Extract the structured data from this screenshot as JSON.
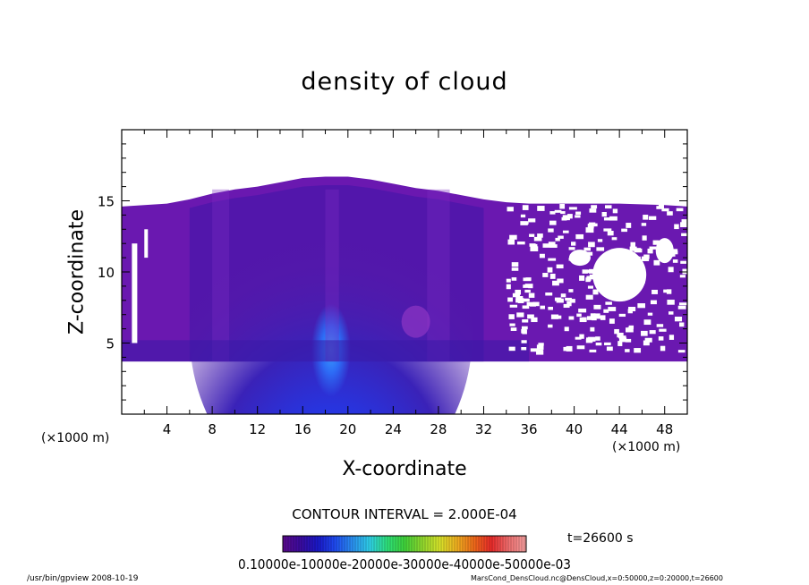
{
  "chart_data": {
    "type": "heatmap",
    "title": "density of cloud",
    "xlabel": "X-coordinate",
    "ylabel": "Z-coordinate",
    "x_unit": "(×1000 m)",
    "xlim": [
      0,
      50
    ],
    "ylim": [
      0,
      20
    ],
    "x_ticks": [
      4,
      8,
      12,
      16,
      20,
      24,
      28,
      32,
      36,
      40,
      44,
      48
    ],
    "y_ticks": [
      5,
      10,
      15
    ],
    "field_extent": {
      "z_base": 3.7,
      "cloud_top_profile_x": [
        0,
        4,
        6,
        8,
        10,
        12,
        14,
        16,
        18,
        20,
        22,
        24,
        26,
        28,
        30,
        32,
        34,
        36,
        40,
        44,
        48,
        50
      ],
      "cloud_top_profile_z": [
        14.6,
        14.8,
        15.1,
        15.5,
        15.8,
        16.0,
        16.3,
        16.6,
        16.7,
        16.7,
        16.5,
        16.2,
        15.9,
        15.7,
        15.4,
        15.1,
        14.9,
        14.8,
        14.8,
        14.8,
        14.7,
        14.6
      ],
      "peak_density_x": 18.5,
      "peak_density_z": 4.5,
      "sparse_region_x": [
        34,
        50
      ]
    },
    "colorbar": {
      "min": 0.0001,
      "max": 0.0031,
      "label_text": "0.10000e-10000e-20000e-30000e-40000e-50000e-03",
      "colors": [
        "#5b0a8c",
        "#3b0b9e",
        "#1a18c8",
        "#1f4af0",
        "#2a8ff0",
        "#2fd0e8",
        "#2ee07a",
        "#3fd23a",
        "#8ed82e",
        "#d6e32a",
        "#f0b020",
        "#f06a1a",
        "#e82a2a",
        "#f07070",
        "#f5a0a0"
      ]
    },
    "contour_interval": "CONTOUR INTERVAL = 2.000E-04",
    "time": "t=26600 s"
  },
  "footer": {
    "left": "/usr/bin/gpview   2008-10-19",
    "right": "MarsCond_DensCloud.nc@DensCloud,x=0:50000,z=0:20000,t=26600"
  }
}
